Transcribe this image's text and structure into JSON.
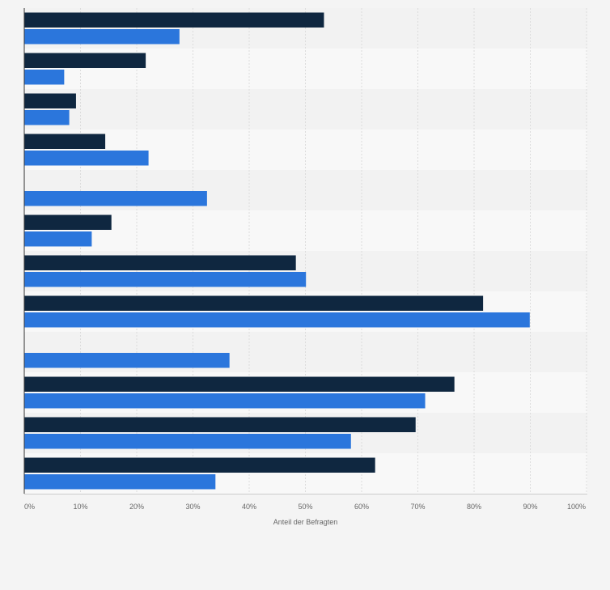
{
  "chart_data": {
    "type": "bar",
    "orientation": "horizontal",
    "title": "",
    "xlabel": "Anteil der Befragten",
    "ylabel": "",
    "xlim": [
      0,
      100
    ],
    "x_ticks": [
      0,
      10,
      20,
      30,
      40,
      50,
      60,
      70,
      80,
      90,
      100
    ],
    "x_tick_labels": [
      "0%",
      "10%",
      "20%",
      "30%",
      "40%",
      "50%",
      "60%",
      "70%",
      "80%",
      "90%",
      "100%"
    ],
    "grid": true,
    "legend": "none",
    "categories": [
      "",
      "",
      "",
      "",
      "",
      "",
      "",
      "",
      "",
      "",
      "",
      ""
    ],
    "series": [
      {
        "color": "#0f2740",
        "values": [
          53.3,
          21.6,
          9.2,
          14.4,
          null,
          15.5,
          48.3,
          81.6,
          null,
          76.5,
          69.6,
          62.4
        ]
      },
      {
        "color": "#2b76dc",
        "values": [
          27.6,
          7.1,
          8.0,
          22.1,
          32.5,
          12.0,
          50.1,
          89.9,
          36.5,
          71.3,
          58.1,
          34.0
        ]
      }
    ]
  }
}
